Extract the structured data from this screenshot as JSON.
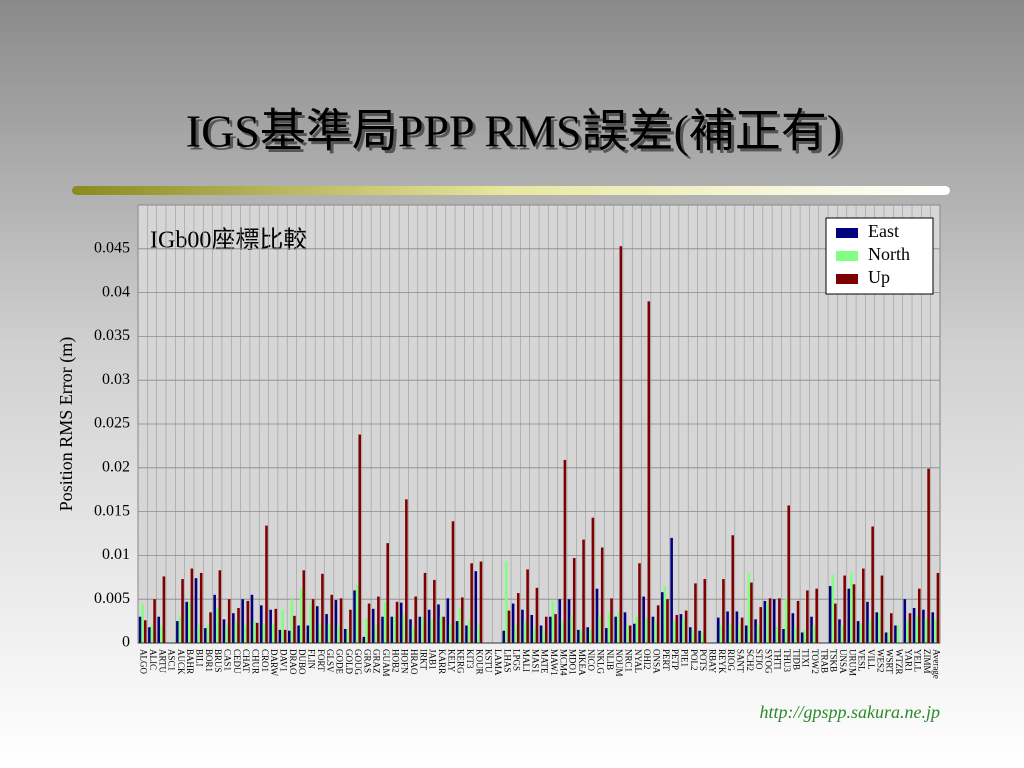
{
  "chart_data": {
    "type": "bar",
    "title": "IGS基準局PPP RMS誤差(補正有)",
    "subtitle": "IGb00座標比較",
    "y_label": "Position RMS Error (m)",
    "source": "http://gpspp.sakura.ne.jp",
    "categories": [
      "ALGO",
      "ALIC",
      "ARTU",
      "ASC1",
      "AUCK",
      "BAHR",
      "BILI",
      "BOR1",
      "BRUS",
      "CAS1",
      "CEDU",
      "CHAT",
      "CHUR",
      "CRO1",
      "DARW",
      "DAV1",
      "DRAO",
      "DUBO",
      "FLIN",
      "FORT",
      "GLSV",
      "GODE",
      "GOLD",
      "GOUG",
      "GRAS",
      "GRAZ",
      "GUAM",
      "HOB2",
      "HOFN",
      "HRAO",
      "IRKT",
      "JAB1",
      "KARR",
      "KELY",
      "KERG",
      "KIT3",
      "KOUR",
      "KSTU",
      "LAMA",
      "LHAS",
      "LPGS",
      "MALI",
      "MAS1",
      "MATE",
      "MAW1",
      "MCM4",
      "MDO1",
      "MKEA",
      "NICO",
      "NKLG",
      "NLIB",
      "NOUM",
      "NRC1",
      "NYAL",
      "OHI2",
      "ONSA",
      "PERT",
      "PETP",
      "PIE1",
      "POL2",
      "POTS",
      "RBAY",
      "REYK",
      "RIOG",
      "SANT",
      "SCH2",
      "STJO",
      "SYOG",
      "THTI",
      "THU3",
      "TIDB",
      "TIXI",
      "TOW2",
      "TRAB",
      "TSKB",
      "UNSA",
      "URUM",
      "VESL",
      "VILL",
      "WES2",
      "WSRT",
      "WTZR",
      "YAR1",
      "YELL",
      "ZIMM",
      "Average"
    ],
    "series": [
      {
        "name": "East",
        "color": "#000080",
        "values": [
          0.003,
          0.0018,
          0.003,
          0,
          0.0025,
          0.0047,
          0.0074,
          0.0017,
          0.0055,
          0.0027,
          0.0034,
          0.005,
          0.0055,
          0.0043,
          0.0038,
          0.0015,
          0.0014,
          0.002,
          0.002,
          0.0042,
          0.0033,
          0.0049,
          0.0016,
          0.006,
          0.0007,
          0.0039,
          0.003,
          0.003,
          0.0046,
          0.0027,
          0.003,
          0.0038,
          0.0044,
          0.0051,
          0.0025,
          0.002,
          0.0082,
          0,
          0,
          0.0014,
          0.0045,
          0.0038,
          0.0032,
          0.002,
          0.003,
          0.005,
          0.005,
          0.0015,
          0.0018,
          0.0062,
          0.0017,
          0.003,
          0.0035,
          0.0022,
          0.0053,
          0.003,
          0.0058,
          0.012,
          0.0033,
          0.0018,
          0.0014,
          0,
          0.0029,
          0.0036,
          0.0036,
          0.002,
          0.0027,
          0.0048,
          0.005,
          0.0016,
          0.0034,
          0.0012,
          0.003,
          0,
          0.0065,
          0.0027,
          0.0062,
          0.0025,
          0.0047,
          0.0035,
          0.0012,
          0.002,
          0.005,
          0.004,
          0.0038,
          0.0035
        ]
      },
      {
        "name": "North",
        "color": "#80ff80",
        "values": [
          0.0045,
          0.002,
          0.002,
          0,
          0.003,
          0.0047,
          0.002,
          0.002,
          0.004,
          0.002,
          0.0024,
          0.002,
          0.0024,
          0.0022,
          0.0022,
          0.0038,
          0.005,
          0.0062,
          0.0045,
          0.002,
          0.0022,
          0.002,
          0.0017,
          0.0066,
          0.0028,
          0.002,
          0.0047,
          0.003,
          0.0032,
          0.0018,
          0.003,
          0.0027,
          0.003,
          0.0022,
          0.004,
          0.0025,
          0.002,
          0,
          0,
          0.0093,
          0.002,
          0.0025,
          0.0018,
          0.0015,
          0.0048,
          0.0025,
          0.003,
          0.0015,
          0.0015,
          0.003,
          0.0035,
          0.0035,
          0.002,
          0.003,
          0.0028,
          0.0025,
          0.0065,
          0.0025,
          0.0027,
          0.0015,
          0.0012,
          0,
          0.002,
          0.0022,
          0.002,
          0.008,
          0.002,
          0.0045,
          0.0018,
          0.0052,
          0.0018,
          0.0015,
          0.002,
          0,
          0.0078,
          0.002,
          0.008,
          0.0022,
          0.0025,
          0.0035,
          0.0012,
          0.002,
          0.0025,
          0.003,
          0.0028,
          0.0028
        ]
      },
      {
        "name": "Up",
        "color": "#800000",
        "values": [
          0.0026,
          0.005,
          0.0076,
          0,
          0.0073,
          0.0085,
          0.008,
          0.0035,
          0.0083,
          0.005,
          0.004,
          0.0048,
          0.0023,
          0.0134,
          0.0039,
          0.0015,
          0.0031,
          0.0083,
          0.005,
          0.0079,
          0.0055,
          0.0051,
          0.0038,
          0.0238,
          0.0045,
          0.0053,
          0.0114,
          0.0047,
          0.0164,
          0.0053,
          0.008,
          0.0072,
          0.003,
          0.0139,
          0.0052,
          0.0091,
          0.0093,
          0,
          0,
          0.0037,
          0.0057,
          0.0084,
          0.0063,
          0.003,
          0.0033,
          0.0209,
          0.0097,
          0.0118,
          0.0143,
          0.0109,
          0.0051,
          0.0453,
          0.002,
          0.0091,
          0.039,
          0.0043,
          0.005,
          0.0032,
          0.0037,
          0.0068,
          0.0073,
          0,
          0.0073,
          0.0123,
          0.0029,
          0.0069,
          0.0041,
          0.0051,
          0.0051,
          0.0157,
          0.0048,
          0.006,
          0.0062,
          0,
          0.0045,
          0.0077,
          0.0067,
          0.0085,
          0.0133,
          0.0077,
          0.0034,
          0,
          0.0034,
          0.0062,
          0.0199,
          0.008
        ]
      }
    ],
    "ylim": [
      0,
      0.05
    ],
    "yticks": [
      0,
      0.005,
      0.01,
      0.015,
      0.02,
      0.025,
      0.03,
      0.035,
      0.04,
      0.045
    ],
    "grid": true,
    "legend": "top-right"
  }
}
